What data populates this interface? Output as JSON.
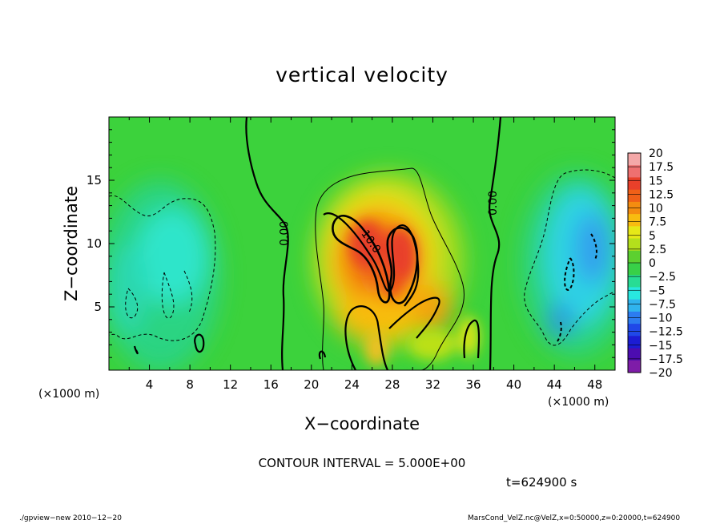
{
  "chart_data": {
    "type": "heatmap",
    "title": "vertical velocity",
    "xlabel": "X−coordinate",
    "ylabel": "Z−coordinate",
    "x_unit": "(×1000 m)",
    "y_unit": "(×1000 m)",
    "xlim": [
      0,
      50
    ],
    "ylim": [
      0,
      20
    ],
    "x_ticks": [
      4,
      8,
      12,
      16,
      20,
      24,
      28,
      32,
      36,
      40,
      44,
      48
    ],
    "y_ticks": [
      5,
      10,
      15
    ],
    "colorbar": {
      "labels": [
        "20",
        "17.5",
        "15",
        "12.5",
        "10",
        "7.5",
        "5",
        "2.5",
        "0",
        "−2.5",
        "−5",
        "−7.5",
        "−10",
        "−12.5",
        "−15",
        "−17.5",
        "−20"
      ],
      "colors": [
        "#f4a8a8",
        "#ee7070",
        "#e8402a",
        "#f06018",
        "#f48c10",
        "#f8bc10",
        "#e6e818",
        "#b4e01c",
        "#5cd030",
        "#38d048",
        "#28dc94",
        "#28e8e0",
        "#30b4ee",
        "#2c7cf0",
        "#2048e8",
        "#1c1cd4",
        "#4c0cb0",
        "#7e1ca8"
      ]
    },
    "contour_labels": [
      {
        "text": "0.00",
        "x": 17.7,
        "z": 10.8
      },
      {
        "text": "10.0",
        "x": 25.6,
        "z": 10.0
      },
      {
        "text": "0.00",
        "x": 38.3,
        "z": 13.2
      }
    ],
    "interval_text": "CONTOUR INTERVAL = 5.000E+00",
    "time_text": "t=624900 s"
  },
  "footer": {
    "left": "./gpview−new   2010−12−20",
    "right": "MarsCond_VelZ.nc@VelZ,x=0:50000,z=0:20000,t=624900"
  }
}
